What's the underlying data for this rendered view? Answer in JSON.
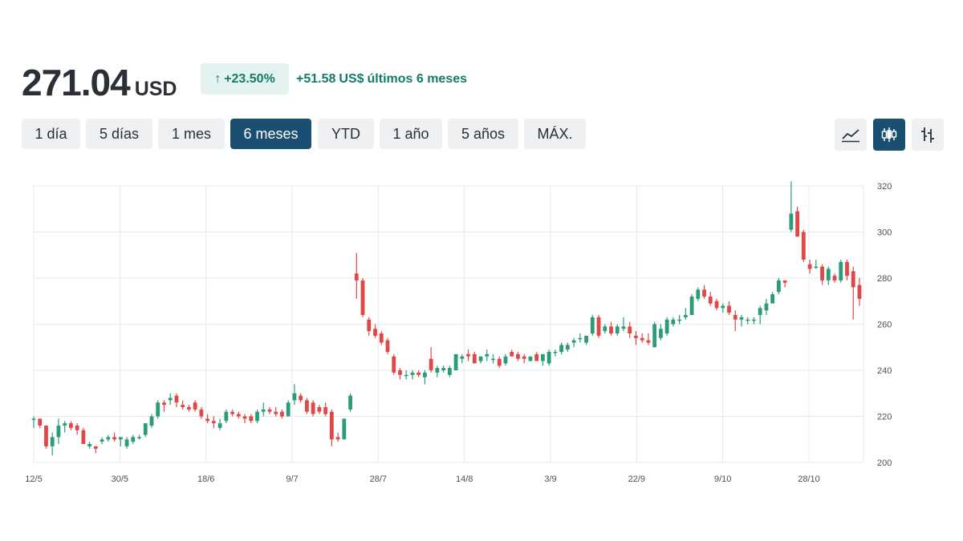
{
  "header": {
    "price": "271.04",
    "currency": "USD",
    "change_arrow": "↑",
    "change_percent": "+23.50%",
    "change_amount": "+51.58",
    "change_unit": "US$",
    "change_period": "últimos 6 meses",
    "change_color": "#137b68",
    "badge_bg": "#e4f3ef"
  },
  "ranges": [
    {
      "label": "1 día",
      "active": false
    },
    {
      "label": "5 días",
      "active": false
    },
    {
      "label": "1 mes",
      "active": false
    },
    {
      "label": "6 meses",
      "active": true
    },
    {
      "label": "YTD",
      "active": false
    },
    {
      "label": "1 año",
      "active": false
    },
    {
      "label": "5 años",
      "active": false
    },
    {
      "label": "MÁX.",
      "active": false
    }
  ],
  "chart_types": [
    {
      "icon": "line-chart-icon",
      "active": false
    },
    {
      "icon": "candlestick-chart-icon",
      "active": true
    },
    {
      "icon": "ohlc-bars-icon",
      "active": false
    }
  ],
  "colors": {
    "up": "#2a9d78",
    "down": "#e04848",
    "active_button": "#1b4f72",
    "grid": "#e6e8eb"
  },
  "chart_data": {
    "type": "candlestick",
    "ylim": [
      200,
      320
    ],
    "y_ticks": [
      200,
      220,
      240,
      260,
      280,
      300,
      320
    ],
    "x_ticks": [
      "12/5",
      "30/5",
      "18/6",
      "9/7",
      "28/7",
      "14/8",
      "3/9",
      "22/9",
      "9/10",
      "28/10"
    ],
    "grid": true,
    "candles": [
      {
        "o": 219,
        "h": 220,
        "l": 215,
        "c": 219
      },
      {
        "o": 219,
        "h": 219,
        "l": 215,
        "c": 216
      },
      {
        "o": 216,
        "h": 216,
        "l": 206,
        "c": 207
      },
      {
        "o": 207,
        "h": 213,
        "l": 203,
        "c": 211
      },
      {
        "o": 211,
        "h": 219,
        "l": 208,
        "c": 216
      },
      {
        "o": 216,
        "h": 218,
        "l": 213,
        "c": 217
      },
      {
        "o": 217,
        "h": 218,
        "l": 214,
        "c": 215
      },
      {
        "o": 216,
        "h": 217,
        "l": 212,
        "c": 214
      },
      {
        "o": 214,
        "h": 215,
        "l": 208,
        "c": 208
      },
      {
        "o": 207,
        "h": 209,
        "l": 206,
        "c": 208
      },
      {
        "o": 207,
        "h": 207,
        "l": 204,
        "c": 206
      },
      {
        "o": 209,
        "h": 211,
        "l": 208,
        "c": 210
      },
      {
        "o": 210,
        "h": 212,
        "l": 209,
        "c": 211
      },
      {
        "o": 211,
        "h": 213,
        "l": 209,
        "c": 210
      },
      {
        "o": 210,
        "h": 211,
        "l": 207,
        "c": 211
      },
      {
        "o": 207,
        "h": 211,
        "l": 206,
        "c": 210
      },
      {
        "o": 209,
        "h": 212,
        "l": 208,
        "c": 211
      },
      {
        "o": 211,
        "h": 212,
        "l": 210,
        "c": 211
      },
      {
        "o": 212,
        "h": 217,
        "l": 211,
        "c": 217
      },
      {
        "o": 216,
        "h": 221,
        "l": 215,
        "c": 220
      },
      {
        "o": 220,
        "h": 227,
        "l": 219,
        "c": 226
      },
      {
        "o": 226,
        "h": 227,
        "l": 222,
        "c": 225
      },
      {
        "o": 227,
        "h": 230,
        "l": 225,
        "c": 228
      },
      {
        "o": 229,
        "h": 230,
        "l": 224,
        "c": 226
      },
      {
        "o": 225,
        "h": 227,
        "l": 223,
        "c": 224
      },
      {
        "o": 224,
        "h": 225,
        "l": 222,
        "c": 223
      },
      {
        "o": 226,
        "h": 227,
        "l": 222,
        "c": 223
      },
      {
        "o": 223,
        "h": 224,
        "l": 219,
        "c": 220
      },
      {
        "o": 219,
        "h": 221,
        "l": 217,
        "c": 218
      },
      {
        "o": 218,
        "h": 220,
        "l": 215,
        "c": 217
      },
      {
        "o": 215,
        "h": 219,
        "l": 214,
        "c": 217
      },
      {
        "o": 218,
        "h": 223,
        "l": 217,
        "c": 222
      },
      {
        "o": 222,
        "h": 223,
        "l": 220,
        "c": 221
      },
      {
        "o": 221,
        "h": 222,
        "l": 219,
        "c": 220
      },
      {
        "o": 220,
        "h": 221,
        "l": 217,
        "c": 219
      },
      {
        "o": 220,
        "h": 221,
        "l": 217,
        "c": 218
      },
      {
        "o": 218,
        "h": 223,
        "l": 217,
        "c": 222
      },
      {
        "o": 222,
        "h": 226,
        "l": 220,
        "c": 223
      },
      {
        "o": 223,
        "h": 224,
        "l": 221,
        "c": 222
      },
      {
        "o": 222,
        "h": 224,
        "l": 220,
        "c": 221
      },
      {
        "o": 222,
        "h": 223,
        "l": 219,
        "c": 220
      },
      {
        "o": 220,
        "h": 227,
        "l": 220,
        "c": 226
      },
      {
        "o": 227,
        "h": 234,
        "l": 225,
        "c": 230
      },
      {
        "o": 229,
        "h": 230,
        "l": 226,
        "c": 227
      },
      {
        "o": 227,
        "h": 228,
        "l": 221,
        "c": 222
      },
      {
        "o": 226,
        "h": 227,
        "l": 220,
        "c": 221
      },
      {
        "o": 224,
        "h": 225,
        "l": 221,
        "c": 222
      },
      {
        "o": 224,
        "h": 226,
        "l": 220,
        "c": 221
      },
      {
        "o": 222,
        "h": 223,
        "l": 207,
        "c": 210
      },
      {
        "o": 211,
        "h": 213,
        "l": 209,
        "c": 210
      },
      {
        "o": 210,
        "h": 219,
        "l": 210,
        "c": 219
      },
      {
        "o": 223,
        "h": 230,
        "l": 222,
        "c": 229
      },
      {
        "o": 282,
        "h": 291,
        "l": 271,
        "c": 279
      },
      {
        "o": 279,
        "h": 280,
        "l": 263,
        "c": 264
      },
      {
        "o": 262,
        "h": 263,
        "l": 255,
        "c": 257
      },
      {
        "o": 258,
        "h": 260,
        "l": 254,
        "c": 255
      },
      {
        "o": 256,
        "h": 257,
        "l": 251,
        "c": 252
      },
      {
        "o": 253,
        "h": 254,
        "l": 247,
        "c": 248
      },
      {
        "o": 246,
        "h": 247,
        "l": 238,
        "c": 239
      },
      {
        "o": 240,
        "h": 241,
        "l": 236,
        "c": 238
      },
      {
        "o": 238,
        "h": 240,
        "l": 236,
        "c": 238
      },
      {
        "o": 238,
        "h": 240,
        "l": 236,
        "c": 239
      },
      {
        "o": 239,
        "h": 240,
        "l": 237,
        "c": 238
      },
      {
        "o": 237,
        "h": 240,
        "l": 234,
        "c": 239
      },
      {
        "o": 245,
        "h": 250,
        "l": 239,
        "c": 240
      },
      {
        "o": 239,
        "h": 242,
        "l": 237,
        "c": 241
      },
      {
        "o": 240,
        "h": 242,
        "l": 239,
        "c": 241
      },
      {
        "o": 238,
        "h": 242,
        "l": 237,
        "c": 241
      },
      {
        "o": 240,
        "h": 247,
        "l": 240,
        "c": 247
      },
      {
        "o": 245,
        "h": 247,
        "l": 243,
        "c": 246
      },
      {
        "o": 247,
        "h": 249,
        "l": 244,
        "c": 246
      },
      {
        "o": 247,
        "h": 248,
        "l": 243,
        "c": 243
      },
      {
        "o": 244,
        "h": 246,
        "l": 243,
        "c": 246
      },
      {
        "o": 246,
        "h": 249,
        "l": 244,
        "c": 247
      },
      {
        "o": 245,
        "h": 247,
        "l": 243,
        "c": 245
      },
      {
        "o": 245,
        "h": 246,
        "l": 241,
        "c": 242
      },
      {
        "o": 243,
        "h": 247,
        "l": 242,
        "c": 246
      },
      {
        "o": 248,
        "h": 249,
        "l": 246,
        "c": 246
      },
      {
        "o": 247,
        "h": 248,
        "l": 244,
        "c": 245
      },
      {
        "o": 246,
        "h": 247,
        "l": 243,
        "c": 245
      },
      {
        "o": 244,
        "h": 246,
        "l": 244,
        "c": 246
      },
      {
        "o": 247,
        "h": 248,
        "l": 244,
        "c": 244
      },
      {
        "o": 244,
        "h": 247,
        "l": 242,
        "c": 247
      },
      {
        "o": 243,
        "h": 249,
        "l": 242,
        "c": 248
      },
      {
        "o": 248,
        "h": 249,
        "l": 246,
        "c": 248
      },
      {
        "o": 248,
        "h": 252,
        "l": 247,
        "c": 251
      },
      {
        "o": 249,
        "h": 252,
        "l": 248,
        "c": 251
      },
      {
        "o": 252,
        "h": 254,
        "l": 250,
        "c": 253
      },
      {
        "o": 254,
        "h": 256,
        "l": 252,
        "c": 254
      },
      {
        "o": 252,
        "h": 255,
        "l": 251,
        "c": 255
      },
      {
        "o": 256,
        "h": 264,
        "l": 255,
        "c": 263
      },
      {
        "o": 263,
        "h": 264,
        "l": 254,
        "c": 255
      },
      {
        "o": 257,
        "h": 260,
        "l": 256,
        "c": 259
      },
      {
        "o": 259,
        "h": 261,
        "l": 255,
        "c": 256
      },
      {
        "o": 256,
        "h": 260,
        "l": 255,
        "c": 259
      },
      {
        "o": 258,
        "h": 263,
        "l": 257,
        "c": 259
      },
      {
        "o": 259,
        "h": 261,
        "l": 254,
        "c": 256
      },
      {
        "o": 255,
        "h": 257,
        "l": 251,
        "c": 254
      },
      {
        "o": 254,
        "h": 256,
        "l": 252,
        "c": 253
      },
      {
        "o": 253,
        "h": 256,
        "l": 251,
        "c": 252
      },
      {
        "o": 250,
        "h": 261,
        "l": 250,
        "c": 260
      },
      {
        "o": 254,
        "h": 260,
        "l": 253,
        "c": 258
      },
      {
        "o": 256,
        "h": 263,
        "l": 255,
        "c": 262
      },
      {
        "o": 260,
        "h": 263,
        "l": 259,
        "c": 262
      },
      {
        "o": 262,
        "h": 264,
        "l": 260,
        "c": 262
      },
      {
        "o": 263,
        "h": 267,
        "l": 262,
        "c": 264
      },
      {
        "o": 264,
        "h": 273,
        "l": 264,
        "c": 272
      },
      {
        "o": 271,
        "h": 276,
        "l": 270,
        "c": 275
      },
      {
        "o": 275,
        "h": 277,
        "l": 271,
        "c": 272
      },
      {
        "o": 272,
        "h": 274,
        "l": 268,
        "c": 269
      },
      {
        "o": 270,
        "h": 271,
        "l": 266,
        "c": 267
      },
      {
        "o": 267,
        "h": 269,
        "l": 265,
        "c": 268
      },
      {
        "o": 268,
        "h": 270,
        "l": 264,
        "c": 265
      },
      {
        "o": 264,
        "h": 266,
        "l": 257,
        "c": 262
      },
      {
        "o": 262,
        "h": 264,
        "l": 259,
        "c": 263
      },
      {
        "o": 262,
        "h": 263,
        "l": 260,
        "c": 262
      },
      {
        "o": 262,
        "h": 263,
        "l": 260,
        "c": 262
      },
      {
        "o": 264,
        "h": 268,
        "l": 260,
        "c": 267
      },
      {
        "o": 266,
        "h": 271,
        "l": 264,
        "c": 269
      },
      {
        "o": 269,
        "h": 274,
        "l": 269,
        "c": 273
      },
      {
        "o": 274,
        "h": 280,
        "l": 273,
        "c": 279
      },
      {
        "o": 279,
        "h": 279,
        "l": 276,
        "c": 278
      },
      {
        "o": 301,
        "h": 322,
        "l": 300,
        "c": 308
      },
      {
        "o": 309,
        "h": 311,
        "l": 298,
        "c": 298
      },
      {
        "o": 300,
        "h": 301,
        "l": 287,
        "c": 288
      },
      {
        "o": 286,
        "h": 288,
        "l": 282,
        "c": 284
      },
      {
        "o": 285,
        "h": 288,
        "l": 284,
        "c": 285
      },
      {
        "o": 285,
        "h": 286,
        "l": 277,
        "c": 279
      },
      {
        "o": 279,
        "h": 285,
        "l": 277,
        "c": 284
      },
      {
        "o": 281,
        "h": 282,
        "l": 278,
        "c": 279
      },
      {
        "o": 279,
        "h": 288,
        "l": 278,
        "c": 287
      },
      {
        "o": 287,
        "h": 288,
        "l": 279,
        "c": 281
      },
      {
        "o": 283,
        "h": 285,
        "l": 262,
        "c": 276
      },
      {
        "o": 277,
        "h": 280,
        "l": 268,
        "c": 271
      }
    ]
  }
}
